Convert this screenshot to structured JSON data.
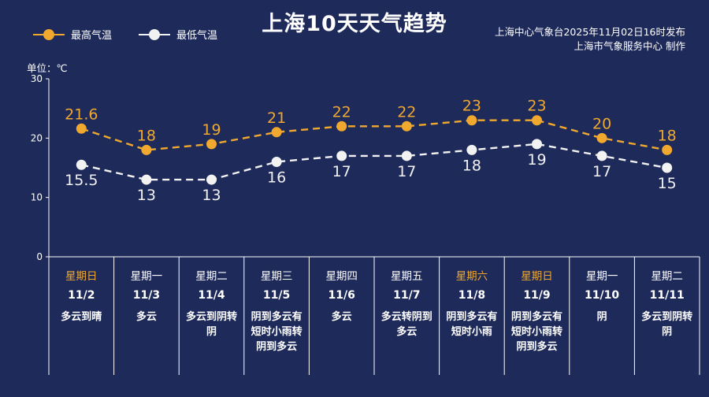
{
  "title": "上海10天天气趋势",
  "legend": {
    "high": "最高气温",
    "low": "最低气温"
  },
  "source": {
    "line1": "上海中心气象台2025年11月02日16时发布",
    "line2": "上海市气象服务中心  制作"
  },
  "unit_label": "单位：℃",
  "colors": {
    "background": "#1e2a5a",
    "high": "#f0a92e",
    "low": "#f2f2f2",
    "weekend": "#f0a92e",
    "weekday": "#ffffff"
  },
  "days": [
    {
      "weekday": "星期日",
      "date": "11/2",
      "weather": "多云到晴",
      "weekend": true
    },
    {
      "weekday": "星期一",
      "date": "11/3",
      "weather": "多云",
      "weekend": false
    },
    {
      "weekday": "星期二",
      "date": "11/4",
      "weather": "多云到阴转阴",
      "weekend": false
    },
    {
      "weekday": "星期三",
      "date": "11/5",
      "weather": "阴到多云有短时小雨转阴到多云",
      "weekend": false
    },
    {
      "weekday": "星期四",
      "date": "11/6",
      "weather": "多云",
      "weekend": false
    },
    {
      "weekday": "星期五",
      "date": "11/7",
      "weather": "多云转阴到多云",
      "weekend": false
    },
    {
      "weekday": "星期六",
      "date": "11/8",
      "weather": "阴到多云有短时小雨",
      "weekend": true
    },
    {
      "weekday": "星期日",
      "date": "11/9",
      "weather": "阴到多云有短时小雨转阴到多云",
      "weekend": true
    },
    {
      "weekday": "星期一",
      "date": "11/10",
      "weather": "阴",
      "weekend": false
    },
    {
      "weekday": "星期二",
      "date": "11/11",
      "weather": "多云到阴转阴",
      "weekend": false
    }
  ],
  "chart_data": {
    "type": "line",
    "categories": [
      "11/2",
      "11/3",
      "11/4",
      "11/5",
      "11/6",
      "11/7",
      "11/8",
      "11/9",
      "11/10",
      "11/11"
    ],
    "series": [
      {
        "name": "最高气温",
        "values": [
          21.6,
          18,
          19,
          21,
          22,
          22,
          23,
          23,
          20,
          18
        ],
        "labels": [
          "21.6",
          "18",
          "19",
          "21",
          "22",
          "22",
          "23",
          "23",
          "20",
          "18"
        ]
      },
      {
        "name": "最低气温",
        "values": [
          15.5,
          13,
          13,
          16,
          17,
          17,
          18,
          19,
          17,
          15
        ],
        "labels": [
          "15.5",
          "13",
          "13",
          "16",
          "17",
          "17",
          "18",
          "19",
          "17",
          "15"
        ]
      }
    ],
    "ylim": [
      0,
      30
    ],
    "yticks": [
      "0",
      "10",
      "20",
      "30"
    ],
    "line_style": "dashed",
    "grid": false
  }
}
